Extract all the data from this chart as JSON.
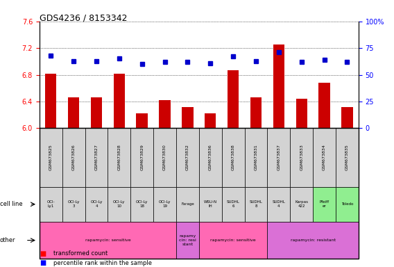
{
  "title": "GDS4236 / 8153342",
  "samples": [
    "GSM673825",
    "GSM673826",
    "GSM673827",
    "GSM673828",
    "GSM673829",
    "GSM673830",
    "GSM673832",
    "GSM673836",
    "GSM673838",
    "GSM673831",
    "GSM673837",
    "GSM673833",
    "GSM673834",
    "GSM673835"
  ],
  "red_values": [
    6.82,
    6.46,
    6.46,
    6.82,
    6.22,
    6.42,
    6.32,
    6.22,
    6.87,
    6.46,
    7.25,
    6.44,
    6.68,
    6.32
  ],
  "blue_values": [
    68,
    63,
    63,
    65,
    60,
    62,
    62,
    61,
    67,
    63,
    71,
    62,
    64,
    62
  ],
  "cell_lines": [
    "OCI-\nLy1",
    "OCI-Ly\n3",
    "OCI-Ly\n4",
    "OCI-Ly\n10",
    "OCI-Ly\n18",
    "OCI-Ly\n19",
    "Farage",
    "WSU-N\nIH",
    "SUDHL\n6",
    "SUDHL\n8",
    "SUDHL\n4",
    "Karpas\n422",
    "Pfeiff\ner",
    "Toledo"
  ],
  "cell_bg_colors": [
    "#d3d3d3",
    "#d3d3d3",
    "#d3d3d3",
    "#d3d3d3",
    "#d3d3d3",
    "#d3d3d3",
    "#d3d3d3",
    "#d3d3d3",
    "#d3d3d3",
    "#d3d3d3",
    "#d3d3d3",
    "#d3d3d3",
    "#90ee90",
    "#90ee90"
  ],
  "other_labels": [
    {
      "text": "rapamycin: sensitive",
      "start": 0,
      "end": 5,
      "color": "#ff69b4"
    },
    {
      "text": "rapamy\ncin: resi\nstant",
      "start": 6,
      "end": 6,
      "color": "#da70d6"
    },
    {
      "text": "rapamycin: sensitive",
      "start": 7,
      "end": 9,
      "color": "#ff69b4"
    },
    {
      "text": "rapamycin: resistant",
      "start": 10,
      "end": 13,
      "color": "#da70d6"
    }
  ],
  "ylim_left": [
    6.0,
    7.6
  ],
  "ylim_right": [
    0,
    100
  ],
  "yticks_left": [
    6.0,
    6.4,
    6.8,
    7.2,
    7.6
  ],
  "yticks_right": [
    0,
    25,
    50,
    75,
    100
  ],
  "bar_color": "#cc0000",
  "dot_color": "#0000cc",
  "bar_width": 0.5,
  "background_color": "#ffffff"
}
